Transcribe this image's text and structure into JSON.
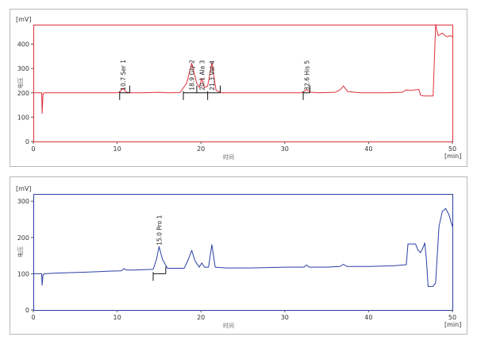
{
  "chart_data": [
    {
      "type": "line",
      "panel": "top",
      "y_unit": "[mV]",
      "x_unit": "[min]",
      "ylabel": "电压",
      "xlabel": "时间",
      "xlim": [
        0,
        50
      ],
      "ylim": [
        0,
        480
      ],
      "x_ticks": [
        0,
        10,
        20,
        30,
        40,
        50
      ],
      "y_ticks": [
        0,
        100,
        200,
        300,
        400
      ],
      "line_color": "#e0303a",
      "frame_color": "#e0303a",
      "series": [
        {
          "x": [
            0,
            1.0,
            1.05,
            1.15,
            1.3,
            2,
            5,
            8,
            10,
            10.3,
            10.7,
            11.1,
            11.5,
            13,
            15,
            16,
            17.5,
            18.3,
            18.9,
            19.5,
            19.8,
            20.1,
            20.4,
            20.8,
            21.3,
            21.8,
            22.5,
            25,
            28,
            30,
            32,
            32.3,
            32.6,
            33,
            34,
            36,
            36.6,
            37,
            37.5,
            39,
            42,
            44,
            44.5,
            45,
            46,
            46.2,
            46.6,
            47.7,
            48.0,
            48.3,
            48.8,
            49.3,
            49.8,
            50
          ],
          "y": [
            200,
            200,
            115,
            195,
            200,
            200,
            200,
            200,
            200,
            203,
            218,
            203,
            200,
            200,
            202,
            200,
            201,
            240,
            322,
            238,
            222,
            260,
            222,
            228,
            324,
            210,
            200,
            200,
            200,
            200,
            200,
            205,
            214,
            203,
            200,
            202,
            212,
            228,
            205,
            200,
            200,
            202,
            212,
            210,
            214,
            190,
            187,
            187,
            480,
            435,
            445,
            430,
            435,
            430
          ]
        }
      ],
      "peaks": [
        {
          "label": "10.7 Ser   1",
          "x": 10.7
        },
        {
          "label": "18.9 Gly   2",
          "x": 18.9
        },
        {
          "label": "20.1 Ala   3",
          "x": 20.1
        },
        {
          "label": "21.3 Val   4",
          "x": 21.3
        },
        {
          "label": "32.6 His   5",
          "x": 32.6
        }
      ],
      "integration_marks": [
        10.3,
        11.5,
        17.9,
        19.5,
        20.8,
        22.3,
        32.2,
        33.0
      ]
    },
    {
      "type": "line",
      "panel": "bottom",
      "y_unit": "[mV]",
      "x_unit": "[min]",
      "ylabel": "电压",
      "xlabel": "时间",
      "xlim": [
        0,
        50
      ],
      "ylim": [
        0,
        320
      ],
      "x_ticks": [
        0,
        10,
        20,
        30,
        40,
        50
      ],
      "y_ticks": [
        0,
        100,
        200,
        300
      ],
      "line_color": "#2a3fa3",
      "frame_color": "#2a3fa3",
      "series": [
        {
          "x": [
            0,
            1.0,
            1.05,
            1.15,
            1.3,
            3,
            6,
            9,
            10.5,
            10.8,
            11.1,
            12,
            14.3,
            14.7,
            15.0,
            15.4,
            16,
            18,
            18.5,
            18.9,
            19.3,
            19.8,
            20.1,
            20.4,
            20.9,
            21.3,
            21.7,
            23,
            26,
            30,
            32.3,
            32.6,
            32.9,
            35,
            36.6,
            37,
            37.4,
            40,
            43,
            44.5,
            44.7,
            45.6,
            45.9,
            46.2,
            46.5,
            46.7,
            46.9,
            47.1,
            47.7,
            48.0,
            48.4,
            48.8,
            49.2,
            49.6,
            50
          ],
          "y": [
            100,
            100,
            68,
            96,
            100,
            102,
            104,
            107,
            108,
            114,
            110,
            110,
            112,
            140,
            175,
            140,
            115,
            115,
            140,
            164,
            135,
            118,
            130,
            118,
            118,
            180,
            118,
            116,
            116,
            118,
            118,
            124,
            118,
            118,
            120,
            126,
            120,
            120,
            122,
            125,
            182,
            182,
            165,
            158,
            172,
            185,
            140,
            65,
            65,
            75,
            230,
            272,
            280,
            262,
            230
          ]
        }
      ],
      "peaks": [
        {
          "label": "15.0 Pro   1",
          "x": 15.0
        }
      ],
      "integration_marks": [
        14.3,
        15.8
      ]
    }
  ]
}
